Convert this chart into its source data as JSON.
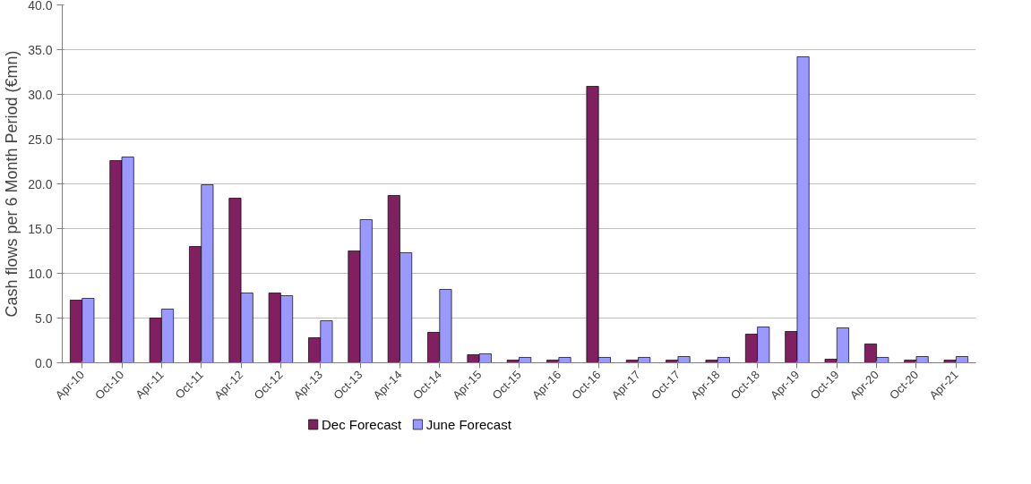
{
  "chart_data": {
    "type": "bar",
    "ylabel": "Cash flows per 6 Month Period (€mn)",
    "categories": [
      "Apr-10",
      "Oct-10",
      "Apr-11",
      "Oct-11",
      "Apr-12",
      "Oct-12",
      "Apr-13",
      "Oct-13",
      "Apr-14",
      "Oct-14",
      "Apr-15",
      "Oct-15",
      "Apr-16",
      "Oct-16",
      "Apr-17",
      "Oct-17",
      "Apr-18",
      "Oct-18",
      "Apr-19",
      "Oct-19",
      "Apr-20",
      "Oct-20",
      "Apr-21"
    ],
    "series": [
      {
        "name": "Dec Forecast",
        "color": "#802060",
        "values": [
          7.0,
          22.6,
          5.0,
          13.0,
          18.4,
          7.8,
          2.8,
          12.5,
          18.7,
          3.4,
          0.9,
          0.3,
          0.3,
          30.9,
          0.3,
          0.3,
          0.3,
          3.2,
          3.5,
          0.4,
          2.1,
          0.3,
          0.3
        ]
      },
      {
        "name": "June Forecast",
        "color": "#9999ff",
        "values": [
          7.2,
          23.0,
          6.0,
          19.9,
          7.8,
          7.5,
          4.7,
          16.0,
          12.3,
          8.2,
          1.0,
          0.6,
          0.6,
          0.6,
          0.6,
          0.7,
          0.6,
          4.0,
          34.2,
          3.9,
          0.6,
          0.7,
          0.7
        ]
      }
    ],
    "ylim": [
      0,
      40
    ],
    "yticks": [
      {
        "value": 0,
        "label": "0.0"
      },
      {
        "value": 5,
        "label": "5.0"
      },
      {
        "value": 10,
        "label": "10.0"
      },
      {
        "value": 15,
        "label": "15.0"
      },
      {
        "value": 20,
        "label": "20.0"
      },
      {
        "value": 25,
        "label": "25.0"
      },
      {
        "value": 30,
        "label": "30.0"
      },
      {
        "value": 35,
        "label": "35.0"
      },
      {
        "value": 40,
        "label": "40.0"
      }
    ],
    "grid": "y",
    "legend": "bottom"
  }
}
